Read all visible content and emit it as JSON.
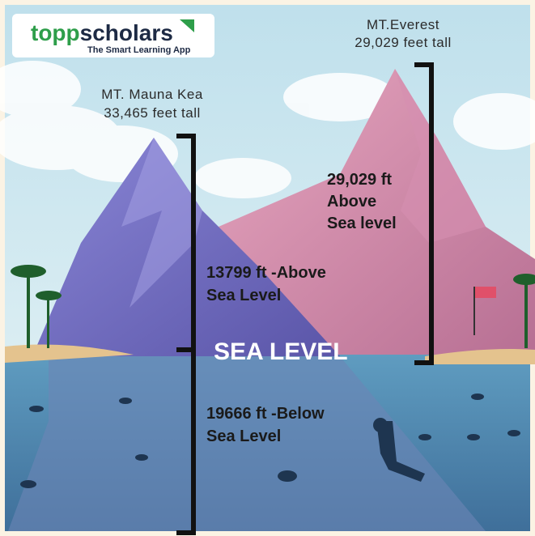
{
  "logo": {
    "brand_first": "topp",
    "brand_second": "scholars",
    "tagline": "The Smart Learning App"
  },
  "mauna_kea": {
    "name": "MT. Mauna Kea",
    "height": "33,465 feet tall",
    "above_line1": "13799 ft -Above",
    "above_line2": "Sea Level",
    "below_line1": "19666 ft -Below",
    "below_line2": "Sea Level"
  },
  "everest": {
    "name": "MT.Everest",
    "height": "29,029 feet tall",
    "above_line1": "29,029 ft",
    "above_line2": "Above",
    "above_line3": "Sea level"
  },
  "sea_level": "SEA LEVEL"
}
